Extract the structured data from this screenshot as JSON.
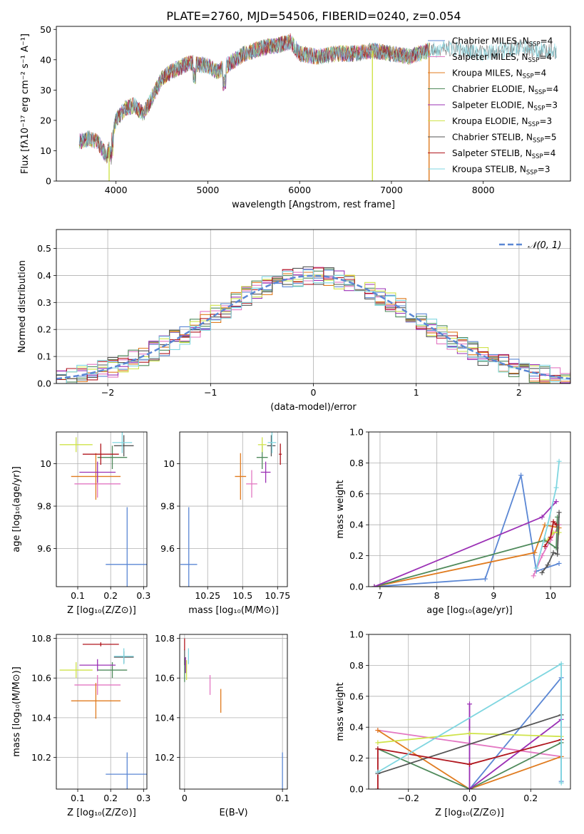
{
  "colors": {
    "chabrier_miles": "#5b87d4",
    "salpeter_miles": "#e377c2",
    "kroupa_miles": "#e07b1f",
    "chabrier_elodie": "#4f8a5b",
    "salpeter_elodie": "#9b30b5",
    "kroupa_elodie": "#cfe34a",
    "chabrier_stelib": "#555555",
    "salpeter_stelib": "#b0161e",
    "kroupa_stelib": "#7fd6e0"
  },
  "chart_data": [
    {
      "id": "spectrum",
      "type": "line",
      "title": "PLATE=2760, MJD=54506, FIBERID=0240, z=0.054",
      "xlabel": "wavelength [Angstrom, rest frame]",
      "ylabel": "Flux [fλ10⁻¹⁷ erg cm⁻² s⁻¹ A⁻¹]",
      "xlim": [
        3350,
        8950
      ],
      "ylim": [
        0,
        51
      ],
      "xticks": [
        4000,
        5000,
        6000,
        7000,
        8000
      ],
      "yticks": [
        0,
        10,
        20,
        30,
        40,
        50
      ],
      "legend_position": "right",
      "legend": [
        {
          "label": "Chabrier MILES, N",
          "sub": "SSP",
          "tail": "=4",
          "color_key": "chabrier_miles"
        },
        {
          "label": "Salpeter MILES, N",
          "sub": "SSP",
          "tail": "=4",
          "color_key": "salpeter_miles"
        },
        {
          "label": "Kroupa MILES, N",
          "sub": "SSP",
          "tail": "=4",
          "color_key": "kroupa_miles"
        },
        {
          "label": "Chabrier ELODIE, N",
          "sub": "SSP",
          "tail": "=4",
          "color_key": "chabrier_elodie"
        },
        {
          "label": "Salpeter ELODIE, N",
          "sub": "SSP",
          "tail": "=3",
          "color_key": "salpeter_elodie"
        },
        {
          "label": "Kroupa ELODIE, N",
          "sub": "SSP",
          "tail": "=3",
          "color_key": "kroupa_elodie"
        },
        {
          "label": "Chabrier STELIB, N",
          "sub": "SSP",
          "tail": "=5",
          "color_key": "chabrier_stelib"
        },
        {
          "label": "Salpeter STELIB, N",
          "sub": "SSP",
          "tail": "=4",
          "color_key": "salpeter_stelib"
        },
        {
          "label": "Kroupa STELIB, N",
          "sub": "SSP",
          "tail": "=3",
          "color_key": "kroupa_stelib"
        }
      ],
      "continuum": {
        "x": [
          3600,
          3700,
          3800,
          3900,
          3950,
          4000,
          4100,
          4200,
          4300,
          4400,
          4500,
          4600,
          4800,
          5000,
          5100,
          5200,
          5400,
          5600,
          5800,
          5900,
          6000,
          6200,
          6400,
          6600,
          6800,
          7000,
          7200,
          7400,
          7600,
          7800,
          8000,
          8200,
          8400,
          8600,
          8800
        ],
        "y": [
          13,
          14,
          13,
          8,
          14,
          20,
          24,
          25,
          22,
          28,
          34,
          36,
          39,
          38,
          36,
          38,
          42,
          44,
          45,
          46,
          42,
          41,
          42,
          42,
          43,
          42,
          41,
          43,
          44,
          43,
          42,
          43,
          44,
          43,
          43
        ]
      },
      "drops": [
        {
          "x": 3925,
          "color_key": "kroupa_elodie"
        },
        {
          "x": 6793,
          "color_key": "kroupa_elodie"
        },
        {
          "x": 7410,
          "color_key": "kroupa_miles"
        }
      ]
    },
    {
      "id": "residual_histogram",
      "type": "line",
      "xlabel": "(data-model)/error",
      "ylabel": "Normed distribution",
      "xlim": [
        -2.5,
        2.5
      ],
      "ylim": [
        0,
        0.57
      ],
      "xticks": [
        -2,
        -1,
        0,
        1,
        2
      ],
      "yticks": [
        0.0,
        0.1,
        0.2,
        0.3,
        0.4,
        0.5
      ],
      "legend_position": "top-right",
      "gaussian_label": "𝒩(0, 1)",
      "gaussian_color_key": "chabrier_miles",
      "gaussian": {
        "mean": 0,
        "sigma": 1
      },
      "bin_width": 0.1,
      "series_noise_seeds": [
        3,
        7,
        11,
        13,
        17,
        19,
        23,
        29,
        31
      ]
    },
    {
      "id": "age_vs_Z",
      "type": "scatter",
      "xlabel": "Z [log₁₀(Z/Z⊙)]",
      "ylabel": "age  [log₁₀(age/yr)]",
      "xlim": [
        0.035,
        0.31
      ],
      "ylim": [
        9.42,
        10.15
      ],
      "xticks": [
        0.1,
        0.2,
        0.3
      ],
      "yticks": [
        9.6,
        9.8,
        10.0
      ],
      "points": [
        {
          "x": 0.25,
          "y": 9.525,
          "xerr": 0.065,
          "yerr": 0.27,
          "color_key": "chabrier_miles"
        },
        {
          "x": 0.16,
          "y": 9.905,
          "xerr": 0.07,
          "yerr": 0.065,
          "color_key": "salpeter_miles"
        },
        {
          "x": 0.155,
          "y": 9.94,
          "xerr": 0.075,
          "yerr": 0.11,
          "color_key": "kroupa_miles"
        },
        {
          "x": 0.205,
          "y": 10.03,
          "xerr": 0.045,
          "yerr": 0.055,
          "color_key": "chabrier_elodie"
        },
        {
          "x": 0.16,
          "y": 9.96,
          "xerr": 0.055,
          "yerr": 0.05,
          "color_key": "salpeter_elodie"
        },
        {
          "x": 0.095,
          "y": 10.09,
          "xerr": 0.05,
          "yerr": 0.035,
          "color_key": "kroupa_elodie"
        },
        {
          "x": 0.24,
          "y": 10.085,
          "xerr": 0.03,
          "yerr": 0.05,
          "color_key": "chabrier_stelib"
        },
        {
          "x": 0.17,
          "y": 10.045,
          "xerr": 0.055,
          "yerr": 0.05,
          "color_key": "salpeter_stelib"
        },
        {
          "x": 0.235,
          "y": 10.1,
          "xerr": 0.03,
          "yerr": 0.05,
          "color_key": "kroupa_stelib"
        }
      ]
    },
    {
      "id": "age_vs_mass",
      "type": "scatter",
      "xlabel": "mass [log₁₀(M/M⊙)]",
      "ylabel": "",
      "xlim": [
        10.05,
        10.82
      ],
      "ylim": [
        9.42,
        10.15
      ],
      "xticks": [
        10.25,
        10.5,
        10.75
      ],
      "yticks": [
        9.6,
        9.8,
        10.0
      ],
      "points": [
        {
          "x": 10.115,
          "y": 9.525,
          "xerr": 0.06,
          "yerr": 0.27,
          "color_key": "chabrier_miles"
        },
        {
          "x": 10.565,
          "y": 9.905,
          "xerr": 0.04,
          "yerr": 0.065,
          "color_key": "salpeter_miles"
        },
        {
          "x": 10.485,
          "y": 9.94,
          "xerr": 0.04,
          "yerr": 0.11,
          "color_key": "kroupa_miles"
        },
        {
          "x": 10.64,
          "y": 10.03,
          "xerr": 0.04,
          "yerr": 0.055,
          "color_key": "chabrier_elodie"
        },
        {
          "x": 10.665,
          "y": 9.96,
          "xerr": 0.035,
          "yerr": 0.05,
          "color_key": "salpeter_elodie"
        },
        {
          "x": 10.64,
          "y": 10.09,
          "xerr": 0.03,
          "yerr": 0.035,
          "color_key": "kroupa_elodie"
        },
        {
          "x": 10.705,
          "y": 10.085,
          "xerr": 0.03,
          "yerr": 0.05,
          "color_key": "chabrier_stelib"
        },
        {
          "x": 10.77,
          "y": 10.045,
          "xerr": 0.01,
          "yerr": 0.05,
          "color_key": "salpeter_stelib"
        },
        {
          "x": 10.71,
          "y": 10.1,
          "xerr": 0.03,
          "yerr": 0.05,
          "color_key": "kroupa_stelib"
        }
      ]
    },
    {
      "id": "mass_weight_vs_age",
      "type": "line",
      "xlabel": "age  [log₁₀(age/yr)]",
      "ylabel": "mass weight",
      "xlim": [
        6.8,
        10.35
      ],
      "ylim": [
        0.0,
        1.0
      ],
      "xticks": [
        7,
        8,
        9,
        10
      ],
      "yticks": [
        0.0,
        0.2,
        0.4,
        0.6,
        0.8,
        1.0
      ],
      "series": [
        {
          "color_key": "chabrier_miles",
          "x": [
            6.9,
            8.85,
            9.48,
            9.75,
            10.15
          ],
          "y": [
            0.0,
            0.05,
            0.72,
            0.1,
            0.15
          ]
        },
        {
          "color_key": "salpeter_miles",
          "x": [
            9.7,
            9.85,
            10.0,
            10.15
          ],
          "y": [
            0.07,
            0.2,
            0.3,
            0.4
          ]
        },
        {
          "color_key": "kroupa_miles",
          "x": [
            6.9,
            9.72,
            9.9,
            10.15
          ],
          "y": [
            0.0,
            0.22,
            0.4,
            0.38
          ]
        },
        {
          "color_key": "chabrier_elodie",
          "x": [
            6.9,
            9.9,
            10.1,
            10.12
          ],
          "y": [
            0.0,
            0.3,
            0.25,
            0.45
          ]
        },
        {
          "color_key": "salpeter_elodie",
          "x": [
            6.9,
            9.85,
            10.1
          ],
          "y": [
            0.0,
            0.45,
            0.55
          ]
        },
        {
          "color_key": "kroupa_elodie",
          "x": [
            9.95,
            10.05,
            10.15
          ],
          "y": [
            0.3,
            0.35,
            0.35
          ]
        },
        {
          "color_key": "chabrier_stelib",
          "x": [
            9.85,
            9.95,
            10.05,
            10.12,
            10.15
          ],
          "y": [
            0.09,
            0.14,
            0.22,
            0.21,
            0.48
          ]
        },
        {
          "color_key": "salpeter_stelib",
          "x": [
            9.9,
            10.0,
            10.05,
            10.1
          ],
          "y": [
            0.26,
            0.32,
            0.42,
            0.4
          ]
        },
        {
          "color_key": "kroupa_stelib",
          "x": [
            9.75,
            9.95,
            10.1,
            10.15
          ],
          "y": [
            0.12,
            0.4,
            0.64,
            0.81
          ]
        }
      ]
    },
    {
      "id": "mass_vs_Z",
      "type": "scatter",
      "xlabel": "Z [log₁₀(Z/Z⊙)]",
      "ylabel": "mass [log₁₀(M/M⊙)]",
      "xlim": [
        0.035,
        0.31
      ],
      "ylim": [
        10.04,
        10.82
      ],
      "xticks": [
        0.1,
        0.2,
        0.3
      ],
      "yticks": [
        10.2,
        10.4,
        10.6,
        10.8
      ],
      "points": [
        {
          "x": 0.25,
          "y": 10.115,
          "xerr": 0.065,
          "yerr": 0.11,
          "color_key": "chabrier_miles"
        },
        {
          "x": 0.16,
          "y": 10.565,
          "xerr": 0.07,
          "yerr": 0.05,
          "color_key": "salpeter_miles"
        },
        {
          "x": 0.155,
          "y": 10.485,
          "xerr": 0.075,
          "yerr": 0.09,
          "color_key": "kroupa_miles"
        },
        {
          "x": 0.205,
          "y": 10.64,
          "xerr": 0.045,
          "yerr": 0.04,
          "color_key": "chabrier_elodie"
        },
        {
          "x": 0.16,
          "y": 10.665,
          "xerr": 0.055,
          "yerr": 0.03,
          "color_key": "salpeter_elodie"
        },
        {
          "x": 0.095,
          "y": 10.64,
          "xerr": 0.05,
          "yerr": 0.04,
          "color_key": "kroupa_elodie"
        },
        {
          "x": 0.24,
          "y": 10.705,
          "xerr": 0.03,
          "yerr": 0.03,
          "color_key": "chabrier_stelib"
        },
        {
          "x": 0.17,
          "y": 10.77,
          "xerr": 0.055,
          "yerr": 0.01,
          "color_key": "salpeter_stelib"
        },
        {
          "x": 0.24,
          "y": 10.71,
          "xerr": 0.03,
          "yerr": 0.04,
          "color_key": "kroupa_stelib"
        }
      ]
    },
    {
      "id": "mass_vs_ebv",
      "type": "scatter",
      "xlabel": "E(B-V)",
      "ylabel": "",
      "xlim": [
        -0.005,
        0.105
      ],
      "ylim": [
        10.04,
        10.82
      ],
      "xticks": [
        0.0,
        0.1
      ],
      "yticks": [
        10.2,
        10.4,
        10.6,
        10.8
      ],
      "points": [
        {
          "x": 0.1,
          "y": 10.115,
          "xerr": 0.0,
          "yerr": 0.11,
          "color_key": "chabrier_miles"
        },
        {
          "x": 0.026,
          "y": 10.565,
          "xerr": 0.0,
          "yerr": 0.05,
          "color_key": "salpeter_miles"
        },
        {
          "x": 0.037,
          "y": 10.485,
          "xerr": 0.0,
          "yerr": 0.06,
          "color_key": "kroupa_miles"
        },
        {
          "x": 0.0,
          "y": 10.64,
          "xerr": 0.0,
          "yerr": 0.06,
          "color_key": "chabrier_elodie"
        },
        {
          "x": 0.001,
          "y": 10.665,
          "xerr": 0.0,
          "yerr": 0.04,
          "color_key": "salpeter_elodie"
        },
        {
          "x": 0.002,
          "y": 10.64,
          "xerr": 0.0,
          "yerr": 0.05,
          "color_key": "kroupa_elodie"
        },
        {
          "x": 0.0,
          "y": 10.705,
          "xerr": 0.0,
          "yerr": 0.04,
          "color_key": "chabrier_stelib"
        },
        {
          "x": 0.0,
          "y": 10.77,
          "xerr": 0.0,
          "yerr": 0.03,
          "color_key": "salpeter_stelib"
        },
        {
          "x": 0.004,
          "y": 10.71,
          "xerr": 0.0,
          "yerr": 0.04,
          "color_key": "kroupa_stelib"
        }
      ]
    },
    {
      "id": "mass_weight_vs_Z",
      "type": "line",
      "xlabel": "Z [log₁₀(Z/Z⊙)]",
      "ylabel": "mass weight",
      "xlim": [
        -0.33,
        0.33
      ],
      "ylim": [
        0.0,
        1.0
      ],
      "xticks": [
        -0.2,
        0.0,
        0.2
      ],
      "xtick_labels": [
        "−0.2",
        "0.0",
        "0.2"
      ],
      "yticks": [
        0.0,
        0.2,
        0.4,
        0.6,
        0.8,
        1.0
      ],
      "series": [
        {
          "color_key": "chabrier_miles",
          "x": [
            0.0,
            0.3,
            0.3
          ],
          "y": [
            0.0,
            0.72,
            0.05
          ]
        },
        {
          "color_key": "salpeter_miles",
          "x": [
            -0.3,
            0.3
          ],
          "y": [
            0.38,
            0.21
          ]
        },
        {
          "color_key": "kroupa_miles",
          "x": [
            -0.3,
            0.0,
            0.3
          ],
          "y": [
            0.38,
            0.0,
            0.21
          ]
        },
        {
          "color_key": "chabrier_elodie",
          "x": [
            -0.3,
            0.0,
            0.3
          ],
          "y": [
            0.26,
            0.0,
            0.3
          ]
        },
        {
          "color_key": "salpeter_elodie",
          "x": [
            0.0,
            0.0,
            0.3
          ],
          "y": [
            0.55,
            0.0,
            0.45
          ]
        },
        {
          "color_key": "kroupa_elodie",
          "x": [
            -0.3,
            0.0,
            0.3
          ],
          "y": [
            0.3,
            0.36,
            0.34
          ]
        },
        {
          "color_key": "chabrier_stelib",
          "x": [
            -0.3,
            0.3
          ],
          "y": [
            0.1,
            0.48
          ]
        },
        {
          "color_key": "salpeter_stelib",
          "x": [
            -0.3,
            -0.3,
            0.0,
            0.3
          ],
          "y": [
            0.0,
            0.26,
            0.16,
            0.32
          ]
        },
        {
          "color_key": "kroupa_stelib",
          "x": [
            -0.3,
            0.3,
            0.3
          ],
          "y": [
            0.11,
            0.81,
            0.04
          ]
        }
      ]
    }
  ]
}
